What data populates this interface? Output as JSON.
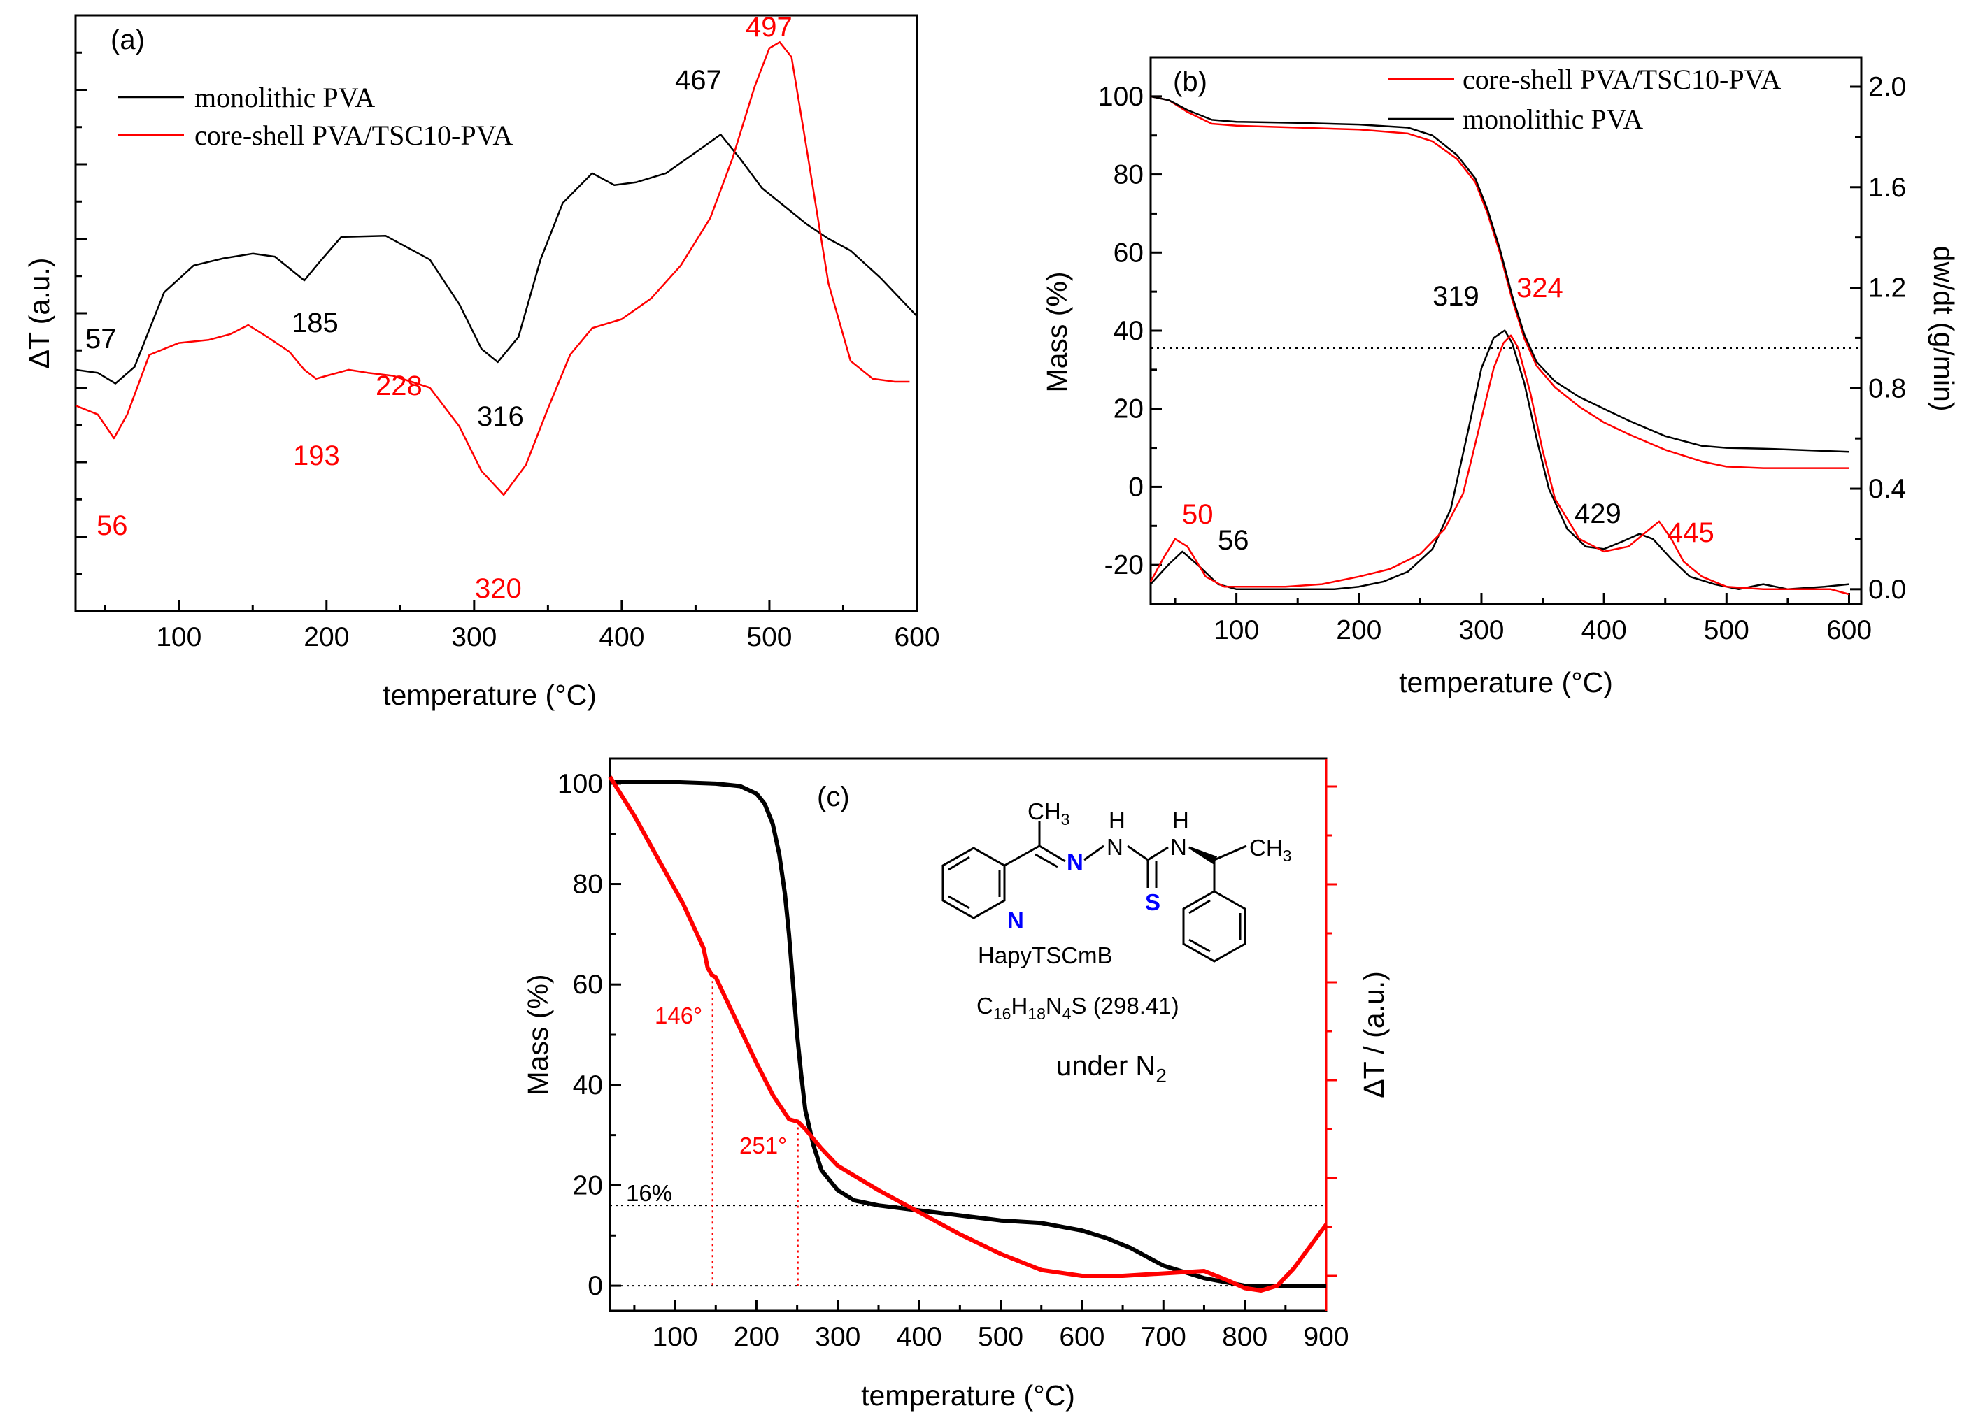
{
  "colors": {
    "black": "#000000",
    "red": "#ff0000"
  },
  "chart_data": [
    {
      "panel_label": "(a)",
      "type": "line",
      "xlabel": "temperature (°C)",
      "ylabel": "ΔT (a.u.)",
      "xlim": [
        30,
        600
      ],
      "ylim": [
        0,
        10
      ],
      "xticks": [
        "100",
        "200",
        "300",
        "400",
        "500",
        "600"
      ],
      "legend_position": "top-left",
      "series": [
        {
          "name": "monolithic PVA",
          "color": "#000000",
          "x": [
            30,
            45,
            57,
            70,
            90,
            110,
            130,
            150,
            165,
            175,
            185,
            195,
            210,
            240,
            270,
            290,
            305,
            316,
            330,
            345,
            360,
            380,
            395,
            410,
            430,
            450,
            467,
            480,
            495,
            510,
            525,
            540,
            555,
            575,
            600
          ],
          "y": [
            4.05,
            4.0,
            3.82,
            4.1,
            5.35,
            5.8,
            5.92,
            6.0,
            5.95,
            5.75,
            5.55,
            5.85,
            6.28,
            6.3,
            5.9,
            5.15,
            4.4,
            4.18,
            4.6,
            5.9,
            6.85,
            7.35,
            7.15,
            7.2,
            7.35,
            7.7,
            8.0,
            7.6,
            7.1,
            6.8,
            6.5,
            6.25,
            6.05,
            5.6,
            4.95
          ]
        },
        {
          "name": "core-shell PVA/TSC10-PVA",
          "color": "#ff0000",
          "x": [
            30,
            45,
            56,
            65,
            80,
            100,
            120,
            135,
            147,
            160,
            175,
            185,
            193,
            200,
            215,
            228,
            245,
            270,
            290,
            305,
            320,
            335,
            350,
            365,
            380,
            400,
            420,
            440,
            460,
            475,
            490,
            500,
            507,
            515,
            525,
            540,
            555,
            570,
            585,
            595
          ],
          "y": [
            3.45,
            3.3,
            2.9,
            3.3,
            4.3,
            4.5,
            4.55,
            4.65,
            4.8,
            4.6,
            4.35,
            4.05,
            3.9,
            3.95,
            4.05,
            4.0,
            3.95,
            3.75,
            3.1,
            2.35,
            1.95,
            2.45,
            3.4,
            4.3,
            4.75,
            4.9,
            5.25,
            5.8,
            6.6,
            7.6,
            8.8,
            9.45,
            9.55,
            9.3,
            7.8,
            5.5,
            4.2,
            3.9,
            3.85,
            3.85
          ]
        }
      ],
      "annotations": [
        {
          "text": "57",
          "color": "#000000"
        },
        {
          "text": "185",
          "color": "#000000"
        },
        {
          "text": "316",
          "color": "#000000"
        },
        {
          "text": "467",
          "color": "#000000"
        },
        {
          "text": "497",
          "color": "#ff0000"
        },
        {
          "text": "228",
          "color": "#ff0000"
        },
        {
          "text": "193",
          "color": "#ff0000"
        },
        {
          "text": "56",
          "color": "#ff0000"
        },
        {
          "text": "320",
          "color": "#ff0000"
        }
      ]
    },
    {
      "panel_label": "(b)",
      "type": "line",
      "xlabel": "temperature (°C)",
      "ylabel": "Mass (%)",
      "y2label": "dw/dt (g/min)",
      "xlim": [
        30,
        610
      ],
      "ylim": [
        -30,
        110
      ],
      "y2lim": [
        -0.02,
        2.0
      ],
      "xticks": [
        "100",
        "200",
        "300",
        "400",
        "500",
        "600"
      ],
      "yticks": [
        "-20",
        "0",
        "20",
        "40",
        "60",
        "80",
        "100"
      ],
      "y2ticks": [
        "0.0",
        "0.4",
        "0.8",
        "1.2",
        "1.6",
        "2.0"
      ],
      "legend_position": "top-right",
      "series": [
        {
          "name": "core-shell PVA/TSC10-PVA",
          "axis": "mass",
          "color": "#ff0000",
          "x": [
            30,
            45,
            60,
            80,
            100,
            150,
            200,
            240,
            260,
            280,
            295,
            305,
            315,
            325,
            335,
            345,
            360,
            380,
            400,
            420,
            450,
            480,
            500,
            530,
            600
          ],
          "y": [
            100,
            99,
            96,
            93,
            92.5,
            92,
            91.5,
            90.5,
            88.5,
            84,
            78,
            70,
            60,
            48,
            38,
            31,
            25.5,
            20.5,
            16.5,
            13.5,
            9.5,
            6.5,
            5.2,
            4.8,
            4.8
          ]
        },
        {
          "name": "monolithic PVA",
          "axis": "mass",
          "color": "#000000",
          "x": [
            30,
            45,
            60,
            80,
            100,
            150,
            200,
            240,
            260,
            280,
            295,
            305,
            315,
            325,
            335,
            345,
            360,
            380,
            400,
            420,
            450,
            480,
            500,
            530,
            600
          ],
          "y": [
            100,
            99,
            96.5,
            94,
            93.5,
            93.2,
            92.8,
            92,
            90,
            85,
            79,
            71,
            61,
            49,
            39,
            32,
            27,
            23,
            20,
            17,
            13,
            10.5,
            10,
            9.8,
            9
          ]
        },
        {
          "name": "",
          "axis": "dw/dt",
          "color": "#000000",
          "x": [
            30,
            45,
            56,
            70,
            85,
            100,
            130,
            160,
            180,
            200,
            220,
            240,
            260,
            275,
            290,
            300,
            310,
            319,
            325,
            335,
            345,
            355,
            370,
            385,
            400,
            415,
            429,
            440,
            455,
            470,
            490,
            510,
            530,
            550,
            580,
            600
          ],
          "y": [
            0.02,
            0.1,
            0.15,
            0.09,
            0.02,
            0.0,
            0.0,
            0.0,
            0.0,
            0.01,
            0.03,
            0.07,
            0.16,
            0.32,
            0.65,
            0.88,
            1.0,
            1.03,
            0.98,
            0.82,
            0.6,
            0.4,
            0.24,
            0.17,
            0.16,
            0.19,
            0.22,
            0.2,
            0.12,
            0.05,
            0.02,
            0.0,
            0.02,
            0.0,
            0.01,
            0.02
          ]
        },
        {
          "name": "",
          "axis": "dw/dt",
          "color": "#ff0000",
          "x": [
            30,
            40,
            50,
            60,
            75,
            90,
            110,
            140,
            170,
            200,
            225,
            250,
            270,
            285,
            300,
            310,
            318,
            324,
            330,
            340,
            350,
            360,
            380,
            400,
            420,
            435,
            445,
            455,
            465,
            480,
            500,
            530,
            560,
            585,
            600
          ],
          "y": [
            0.03,
            0.12,
            0.2,
            0.17,
            0.05,
            0.01,
            0.01,
            0.01,
            0.02,
            0.05,
            0.08,
            0.14,
            0.24,
            0.38,
            0.68,
            0.88,
            0.98,
            1.01,
            0.96,
            0.78,
            0.55,
            0.36,
            0.2,
            0.15,
            0.17,
            0.23,
            0.27,
            0.2,
            0.11,
            0.05,
            0.01,
            0.0,
            0.0,
            0.0,
            -0.02
          ]
        }
      ],
      "annotations": [
        {
          "text": "319",
          "color": "#000000"
        },
        {
          "text": "324",
          "color": "#ff0000"
        },
        {
          "text": "50",
          "color": "#ff0000"
        },
        {
          "text": "56",
          "color": "#000000"
        },
        {
          "text": "429",
          "color": "#000000"
        },
        {
          "text": "445",
          "color": "#ff0000"
        }
      ]
    },
    {
      "panel_label": "(c)",
      "type": "line",
      "xlabel": "temperature (°C)",
      "ylabel": "Mass (%)",
      "y2label": "ΔT / (a.u.)",
      "xlim": [
        20,
        900
      ],
      "ylim": [
        -5,
        105
      ],
      "y2lim": [
        0,
        10
      ],
      "xticks": [
        "100",
        "200",
        "300",
        "400",
        "500",
        "600",
        "700",
        "800",
        "900"
      ],
      "yticks": [
        "0",
        "20",
        "40",
        "60",
        "80",
        "100"
      ],
      "series": [
        {
          "name": "",
          "axis": "mass",
          "color": "#000000",
          "x": [
            20,
            100,
            150,
            180,
            200,
            210,
            220,
            228,
            235,
            240,
            245,
            250,
            255,
            260,
            270,
            280,
            300,
            320,
            350,
            400,
            500,
            550,
            600,
            630,
            660,
            700,
            750,
            800,
            900
          ],
          "y": [
            100.3,
            100.3,
            100,
            99.5,
            98,
            96,
            92,
            86,
            78,
            70,
            60,
            50,
            42,
            35,
            28,
            23,
            19,
            17,
            16,
            15,
            13,
            12.5,
            11,
            9.5,
            7.5,
            4,
            1.5,
            0,
            0
          ]
        },
        {
          "name": "",
          "axis": "dT",
          "color": "#ff0000",
          "x": [
            20,
            50,
            80,
            110,
            135,
            140,
            145,
            150,
            160,
            180,
            200,
            220,
            240,
            251,
            260,
            280,
            300,
            350,
            400,
            450,
            500,
            550,
            600,
            650,
            700,
            750,
            780,
            800,
            820,
            840,
            860,
            880,
            900
          ],
          "y": [
            10.2,
            9.4,
            8.5,
            7.6,
            6.7,
            6.3,
            6.15,
            6.1,
            5.75,
            5.05,
            4.35,
            3.7,
            3.2,
            3.15,
            3.0,
            2.6,
            2.25,
            1.75,
            1.3,
            0.85,
            0.45,
            0.12,
            0.0,
            0.0,
            0.05,
            0.1,
            -0.1,
            -0.25,
            -0.3,
            -0.2,
            0.15,
            0.6,
            1.05
          ]
        }
      ],
      "reference_lines": [
        {
          "type": "horizontal",
          "y": 16,
          "label": "16%"
        },
        {
          "type": "horizontal",
          "y": 0
        },
        {
          "type": "vertical",
          "x": 146,
          "label": "146°"
        },
        {
          "type": "vertical",
          "x": 251,
          "label": "251°"
        }
      ],
      "inset": {
        "compound_name": "HapyTSCmB",
        "formula_parts": [
          "C",
          "16",
          "H",
          "18",
          "N",
          "4",
          "S (298.41)"
        ],
        "atmosphere_prefix": "under N",
        "atmosphere_sub": "2",
        "atom_labels": [
          "CH",
          "3",
          "N",
          "H",
          "H",
          "N",
          "N",
          "CH",
          "3",
          "N",
          "S"
        ]
      }
    }
  ]
}
